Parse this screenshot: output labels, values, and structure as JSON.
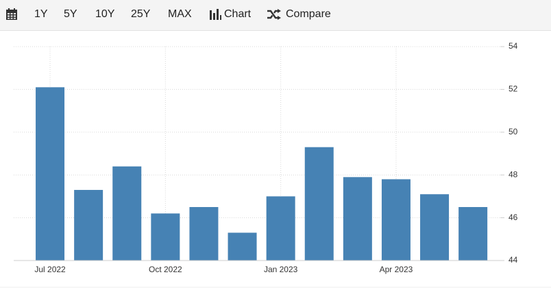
{
  "toolbar": {
    "ranges": [
      "1Y",
      "5Y",
      "10Y",
      "25Y",
      "MAX"
    ],
    "chart": "Chart",
    "compare": "Compare"
  },
  "chart_data": {
    "type": "bar",
    "categories": [
      "Jul 2022",
      null,
      null,
      "Oct 2022",
      null,
      null,
      "Jan 2023",
      null,
      null,
      "Apr 2023",
      null,
      null
    ],
    "values": [
      52.1,
      47.3,
      48.4,
      46.2,
      46.5,
      45.3,
      47.0,
      49.3,
      47.9,
      47.8,
      47.1,
      46.5
    ],
    "color": "#4682b4",
    "ylim": [
      44,
      54
    ],
    "yticks": [
      44,
      46,
      48,
      50,
      52,
      54
    ],
    "grid": true
  }
}
